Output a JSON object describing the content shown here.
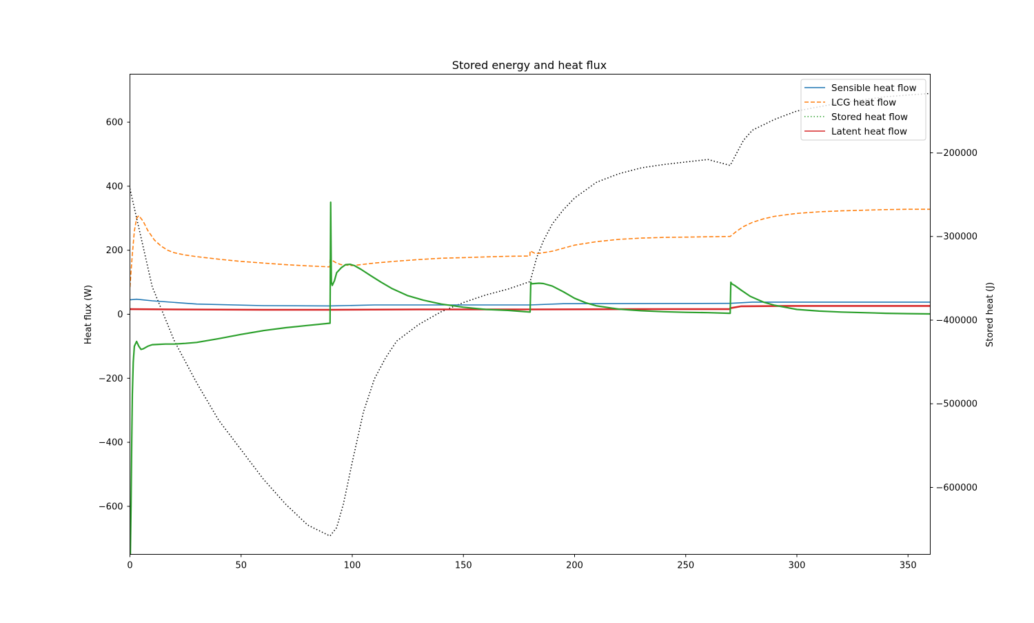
{
  "chart_data": {
    "type": "line",
    "title": "Stored energy and heat flux",
    "xlabel": "",
    "ylabel": "Heat flux (W)",
    "y2label": "Stored heat (J)",
    "xlim": [
      0,
      360
    ],
    "ylim": [
      -750,
      750
    ],
    "y2lim": [
      -680000,
      -106000
    ],
    "xticks": [
      0,
      50,
      100,
      150,
      200,
      250,
      300,
      350
    ],
    "yticks": [
      -600,
      -400,
      -200,
      0,
      200,
      400,
      600
    ],
    "y2ticks": [
      -600000,
      -500000,
      -400000,
      -300000,
      -200000
    ],
    "xtick_labels": [
      "0",
      "50",
      "100",
      "150",
      "200",
      "250",
      "300",
      "350"
    ],
    "ytick_labels": [
      "−600",
      "−400",
      "−200",
      "0",
      "200",
      "400",
      "600"
    ],
    "y2tick_labels": [
      "−600000",
      "−500000",
      "−400000",
      "−300000",
      "−200000"
    ],
    "grid": false,
    "legend_position": "top-right",
    "series": [
      {
        "name": "Sensible heat flow",
        "axis": "left",
        "style": "solid",
        "color": "#1f77b4",
        "x": [
          0,
          3,
          10,
          30,
          60,
          89.9,
          90,
          110,
          179.9,
          180,
          195,
          269.9,
          270,
          280,
          360
        ],
        "y": [
          45,
          47,
          42,
          32,
          27,
          26,
          26,
          29,
          29,
          29,
          33,
          34,
          34,
          38,
          38
        ]
      },
      {
        "name": "LCG heat flow",
        "axis": "left",
        "style": "dashed",
        "color": "#ff7f0e",
        "x": [
          0,
          1,
          2,
          3,
          4,
          6,
          8,
          11,
          14,
          17,
          20,
          25,
          30,
          40,
          50,
          60,
          70,
          80,
          89.9,
          90,
          91,
          93,
          95,
          100,
          110,
          120,
          130,
          140,
          150,
          160,
          170,
          179.9,
          180,
          182,
          184,
          190,
          200,
          210,
          220,
          230,
          240,
          250,
          260,
          269.9,
          270,
          273,
          276,
          280,
          285,
          290,
          300,
          310,
          320,
          330,
          340,
          350,
          360
        ],
        "y": [
          85,
          180,
          260,
          300,
          308,
          290,
          262,
          232,
          213,
          200,
          192,
          185,
          180,
          172,
          165,
          160,
          155,
          151,
          148,
          170,
          168,
          160,
          155,
          152,
          160,
          166,
          171,
          175,
          177,
          179,
          181,
          182,
          198,
          191,
          190,
          197,
          216,
          227,
          234,
          238,
          240,
          241,
          242,
          243,
          243,
          260,
          274,
          287,
          298,
          306,
          315,
          320,
          323,
          325,
          327,
          328,
          328
        ]
      },
      {
        "name": "Stored heat flow",
        "axis": "left",
        "style": "dotted",
        "color": "#2ca02c",
        "x": [
          0.2,
          0.5,
          0.8,
          1.1,
          1.5,
          2,
          3,
          4,
          5,
          6,
          8,
          10,
          13,
          16,
          20,
          25,
          30,
          40,
          50,
          60,
          70,
          80,
          89.9,
          90,
          90.3,
          90.6,
          91,
          92,
          93,
          95,
          97,
          99,
          101,
          104,
          108,
          113,
          118,
          125,
          132,
          140,
          150,
          160,
          170,
          179.9,
          180,
          180.3,
          180.7,
          182,
          184,
          186,
          190,
          195,
          200,
          205,
          210,
          220,
          230,
          240,
          250,
          260,
          269.9,
          270,
          270.3,
          270.7,
          272,
          275,
          279,
          285,
          290,
          300,
          310,
          320,
          330,
          340,
          350,
          360
        ],
        "y": [
          -750,
          -600,
          -400,
          -250,
          -150,
          -100,
          -85,
          -100,
          -110,
          -108,
          -100,
          -95,
          -94,
          -93,
          -93,
          -91,
          -88,
          -76,
          -63,
          -51,
          -42,
          -35,
          -28,
          -28,
          350,
          100,
          90,
          105,
          130,
          145,
          155,
          156,
          152,
          140,
          122,
          100,
          80,
          58,
          44,
          32,
          22,
          15,
          12,
          7,
          7,
          100,
          95,
          96,
          97,
          96,
          88,
          70,
          50,
          36,
          26,
          16,
          11,
          8,
          6,
          5,
          3,
          3,
          100,
          95,
          90,
          75,
          56,
          38,
          28,
          15,
          10,
          7,
          5,
          3,
          2,
          1
        ]
      },
      {
        "name": "Latent heat flow",
        "axis": "left",
        "style": "solid",
        "color": "#d62728",
        "x": [
          0,
          20,
          60,
          89.9,
          90,
          130,
          179.9,
          180,
          230,
          269.9,
          270,
          275,
          300,
          360
        ],
        "y": [
          16,
          15,
          14,
          14,
          14,
          15,
          15,
          15,
          16,
          16,
          19,
          25,
          26,
          26
        ]
      },
      {
        "name": "",
        "axis": "right",
        "style": "dotted",
        "color": "#000000",
        "x": [
          0,
          10,
          20,
          30,
          40,
          50,
          60,
          70,
          80,
          89.9,
          90,
          93,
          96,
          100,
          105,
          110,
          115,
          120,
          130,
          140,
          150,
          160,
          170,
          179.9,
          180,
          183,
          186,
          190,
          195,
          200,
          210,
          220,
          230,
          240,
          250,
          260,
          269.9,
          270,
          273,
          276,
          280,
          290,
          300,
          320,
          340,
          360
        ],
        "y": [
          -243000,
          -360000,
          -425000,
          -475000,
          -520000,
          -555000,
          -590000,
          -620000,
          -645000,
          -658000,
          -658000,
          -648000,
          -620000,
          -570000,
          -510000,
          -470000,
          -445000,
          -425000,
          -405000,
          -390000,
          -379000,
          -370000,
          -363000,
          -354000,
          -354000,
          -325000,
          -305000,
          -285000,
          -268000,
          -254000,
          -235000,
          -225000,
          -218000,
          -214000,
          -211000,
          -208000,
          -215000,
          -215000,
          -200000,
          -185000,
          -173000,
          -160000,
          -150000,
          -140000,
          -133000,
          -129000
        ]
      }
    ]
  }
}
